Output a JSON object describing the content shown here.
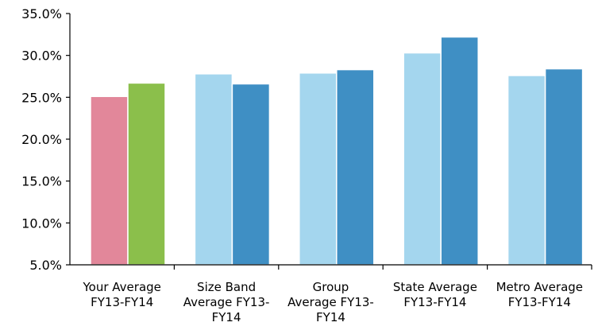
{
  "chart_data": {
    "type": "bar",
    "categories": [
      [
        "Your Average",
        "FY13-FY14"
      ],
      [
        "Size Band",
        "Average FY13-",
        "FY14"
      ],
      [
        "Group",
        "Average FY13-",
        "FY14"
      ],
      [
        "State Average",
        "FY13-FY14"
      ],
      [
        "Metro Average",
        "FY13-FY14"
      ]
    ],
    "series": [
      {
        "values": [
          25.1,
          27.8,
          27.9,
          30.3,
          27.6
        ]
      },
      {
        "values": [
          26.7,
          26.6,
          28.3,
          32.2,
          28.4
        ]
      }
    ],
    "bar_colors": [
      [
        "#e2879a",
        "#8bbf4b"
      ],
      [
        "#a4d6ee",
        "#3f8fc4"
      ],
      [
        "#a4d6ee",
        "#3f8fc4"
      ],
      [
        "#a4d6ee",
        "#3f8fc4"
      ],
      [
        "#a4d6ee",
        "#3f8fc4"
      ]
    ],
    "ylim": [
      5,
      35
    ],
    "yticks": [
      "5.0%",
      "10.0%",
      "15.0%",
      "20.0%",
      "25.0%",
      "30.0%",
      "35.0%"
    ],
    "title": "",
    "xlabel": "",
    "ylabel": "",
    "grid": false,
    "legend": "none"
  }
}
